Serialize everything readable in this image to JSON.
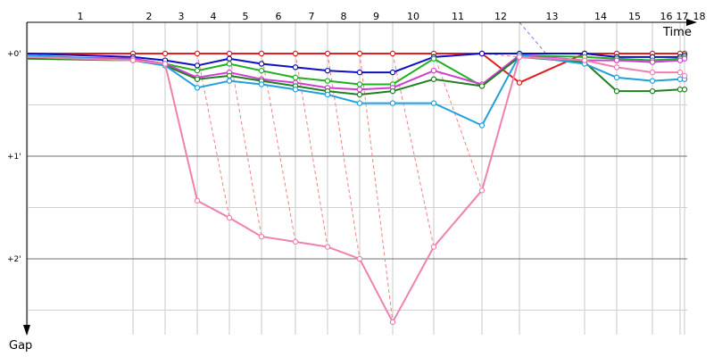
{
  "chart_data": {
    "type": "line",
    "xlabel": "Time",
    "ylabel": "Gap",
    "laps": [
      "1",
      "2",
      "3",
      "4",
      "5",
      "6",
      "7",
      "8",
      "9",
      "10",
      "11",
      "12",
      "13",
      "14",
      "15",
      "16",
      "17",
      "18"
    ],
    "y_ticks": [
      {
        "value": 0,
        "label": "+0'"
      },
      {
        "value": 60,
        "label": "+1'"
      },
      {
        "value": 120,
        "label": "+2'"
      }
    ],
    "ylim": [
      -18,
      165
    ],
    "grid": true,
    "series": [
      {
        "color": "#e02020",
        "values": [
          0,
          0,
          0,
          0,
          0,
          0,
          0,
          0,
          0,
          0,
          0,
          0,
          17,
          0,
          0,
          0,
          0,
          0
        ]
      },
      {
        "color": "#1010c0",
        "values": [
          0,
          2,
          4,
          7,
          3,
          6,
          8,
          10,
          11,
          11,
          2,
          0,
          0,
          0,
          2,
          2,
          2,
          1
        ]
      },
      {
        "color": "#20b020",
        "values": [
          2,
          3,
          6,
          10,
          6,
          10,
          14,
          16,
          18,
          18,
          3,
          19,
          1,
          2,
          3,
          4,
          3,
          2
        ]
      },
      {
        "color": "#d040d0",
        "values": [
          2,
          3,
          6,
          14,
          11,
          15,
          17,
          20,
          21,
          20,
          10,
          18,
          1,
          4,
          4,
          5,
          4,
          3
        ]
      },
      {
        "color": "#208020",
        "values": [
          3,
          4,
          7,
          15,
          13,
          16,
          19,
          22,
          24,
          22,
          15,
          19,
          2,
          5,
          22,
          22,
          21,
          21
        ]
      },
      {
        "color": "#20a0e0",
        "values": [
          1,
          4,
          7,
          20,
          16,
          18,
          21,
          24,
          29,
          29,
          29,
          42,
          1,
          6,
          14,
          16,
          15,
          15
        ]
      },
      {
        "color": "#f080b0",
        "values": [
          2,
          4,
          6,
          86,
          96,
          107,
          110,
          113,
          120,
          157,
          113,
          80,
          2,
          4,
          8,
          11,
          11,
          13
        ]
      }
    ]
  }
}
